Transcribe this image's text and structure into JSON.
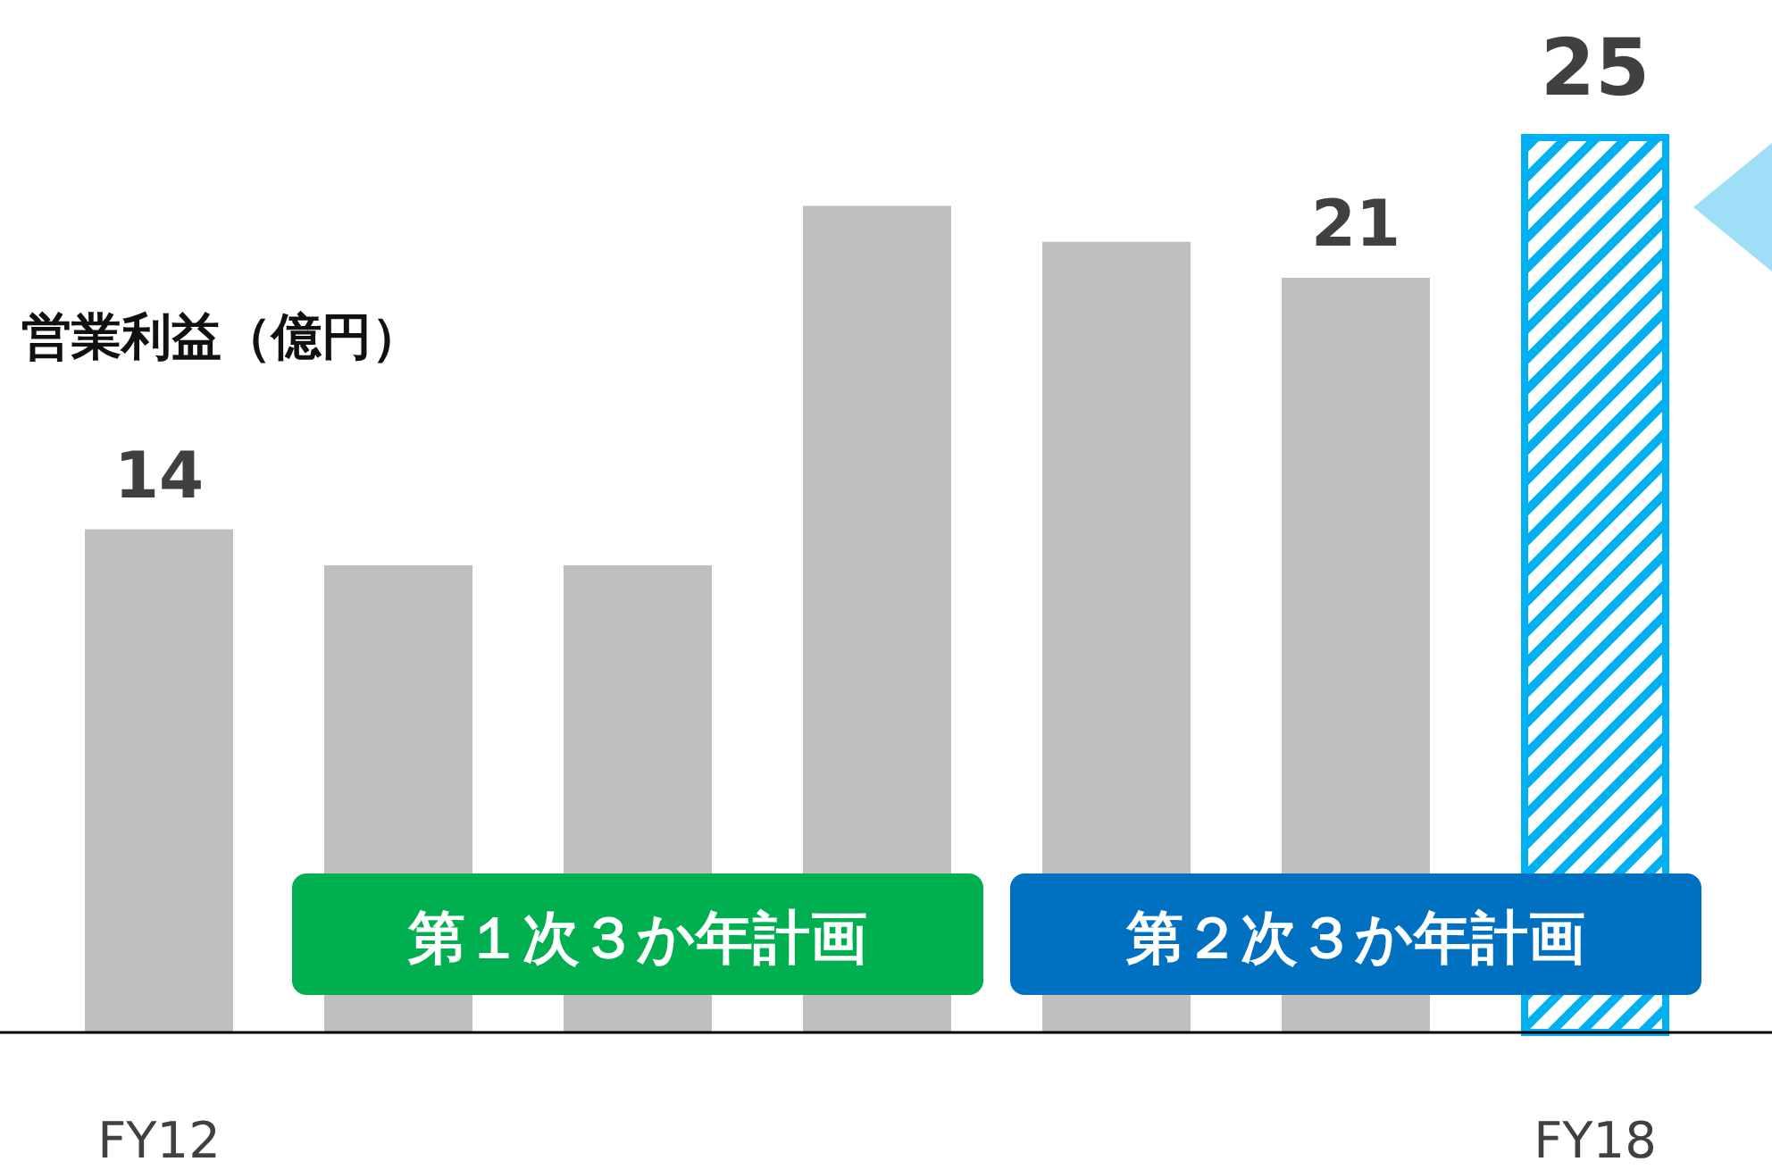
{
  "chart_data": {
    "type": "bar",
    "ylabel": "営業利益（億円）",
    "categories": [
      "FY12",
      null,
      null,
      null,
      null,
      null,
      "FY18"
    ],
    "values": [
      14,
      13,
      13,
      23,
      22,
      21,
      25
    ],
    "value_labels": [
      "14",
      null,
      null,
      null,
      null,
      "21",
      "25"
    ],
    "colors": [
      "#bfbfbf",
      "#bfbfbf",
      "#bfbfbf",
      "#bfbfbf",
      "#bfbfbf",
      "#bfbfbf",
      "#00b0f0"
    ],
    "annotations": [
      "第１次３か年計画",
      "第２次３か年計画"
    ]
  }
}
